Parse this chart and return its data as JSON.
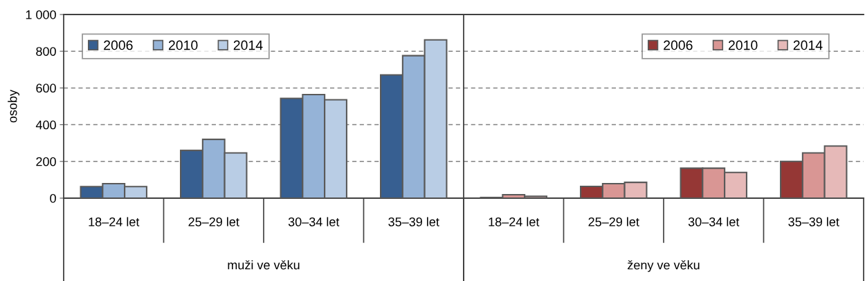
{
  "chart_data": [
    {
      "type": "bar",
      "xlabel": "muži ve věku",
      "ylabel": "osoby",
      "categories": [
        "18–24 let",
        "25–29 let",
        "30–34 let",
        "35–39 let"
      ],
      "series": [
        {
          "name": "2006",
          "color": "#375f91",
          "values": [
            63,
            260,
            543,
            671
          ]
        },
        {
          "name": "2010",
          "color": "#95b3d7",
          "values": [
            79,
            320,
            564,
            776
          ]
        },
        {
          "name": "2014",
          "color": "#b9cde5",
          "values": [
            63,
            246,
            536,
            862
          ]
        }
      ],
      "ylim": [
        0,
        1000
      ],
      "yticks": [
        0,
        200,
        400,
        600,
        800,
        {
          "value": 1000,
          "label": "1 000"
        }
      ],
      "grid": "y",
      "legend": "top left"
    },
    {
      "type": "bar",
      "xlabel": "ženy ve věku",
      "categories": [
        "18–24 let",
        "25–29 let",
        "30–34 let",
        "35–39 let"
      ],
      "series": [
        {
          "name": "2006",
          "color": "#953735",
          "values": [
            4,
            64,
            163,
            200
          ]
        },
        {
          "name": "2010",
          "color": "#d99694",
          "values": [
            19,
            79,
            163,
            246
          ]
        },
        {
          "name": "2014",
          "color": "#e6b9b8",
          "values": [
            10,
            86,
            140,
            284
          ]
        }
      ],
      "ylim": [
        0,
        1000
      ],
      "yticks": [
        0,
        200,
        400,
        600,
        800,
        1000
      ],
      "grid": "y",
      "legend": "top right",
      "tick_labels": "x"
    }
  ]
}
